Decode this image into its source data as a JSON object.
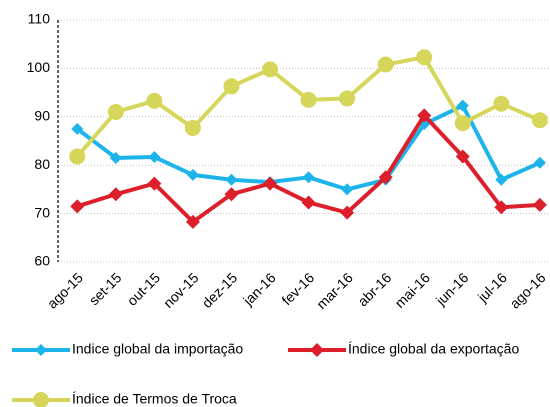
{
  "chart_data": {
    "type": "line",
    "categories": [
      "ago-15",
      "set-15",
      "out-15",
      "nov-15",
      "dez-15",
      "jan-16",
      "fev-16",
      "mar-16",
      "abr-16",
      "mai-16",
      "jun-16",
      "jul-16",
      "ago-16"
    ],
    "series": [
      {
        "name": "Indice global da importação",
        "color": "#1cb4ea",
        "marker": "diamond",
        "values": [
          87.5,
          81.5,
          81.7,
          78,
          77,
          76.5,
          77.5,
          75,
          77,
          88.5,
          92.3,
          77,
          80.5
        ]
      },
      {
        "name": "Índice global da exportação",
        "color": "#dc1f2a",
        "marker": "diamond",
        "values": [
          71.5,
          74,
          76.2,
          68.3,
          74,
          76.2,
          72.3,
          70.2,
          77.5,
          90.3,
          81.8,
          71.3,
          71.8
        ]
      },
      {
        "name": "Índice de Termos de Troca",
        "color": "#d6d65a",
        "marker": "circle",
        "values": [
          81.8,
          91,
          93.3,
          87.7,
          96.3,
          99.8,
          93.5,
          93.8,
          100.8,
          102.3,
          88.7,
          92.7,
          89.3
        ]
      }
    ],
    "ylim": [
      60,
      110
    ],
    "yticks": [
      60,
      70,
      80,
      90,
      100,
      110
    ],
    "grid": true
  }
}
